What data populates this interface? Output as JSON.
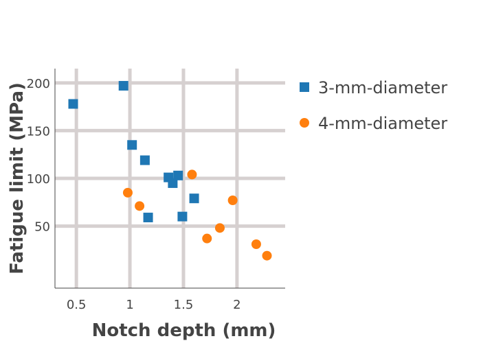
{
  "chart_data": {
    "type": "scatter",
    "title": "",
    "xlabel": "Notch depth (mm)",
    "ylabel": "Fatigue limit (MPa)",
    "xlim": [
      0.3,
      2.45
    ],
    "ylim": [
      -15,
      215
    ],
    "xticks": [
      0.5,
      1,
      1.5,
      2
    ],
    "xtick_labels": [
      "0.5",
      "1",
      "1.5",
      "2"
    ],
    "yticks": [
      50,
      100,
      150,
      200
    ],
    "ytick_labels": [
      "50",
      "100",
      "150",
      "200"
    ],
    "grid": true,
    "legend_position": "top-right-outside",
    "series": [
      {
        "name": "3-mm-diameter",
        "marker": "square",
        "color": "#1f77b4",
        "x": [
          0.47,
          0.94,
          1.02,
          1.14,
          1.17,
          1.36,
          1.4,
          1.45,
          1.49,
          1.6
        ],
        "y": [
          178,
          197,
          135,
          119,
          59,
          101,
          95,
          103,
          60,
          79
        ]
      },
      {
        "name": "4-mm-diameter",
        "marker": "circle",
        "color": "#ff7f0e",
        "x": [
          0.98,
          1.09,
          1.58,
          1.72,
          1.84,
          1.96,
          2.18,
          2.28
        ],
        "y": [
          85,
          71,
          104,
          37,
          48,
          77,
          31,
          19
        ]
      }
    ]
  }
}
